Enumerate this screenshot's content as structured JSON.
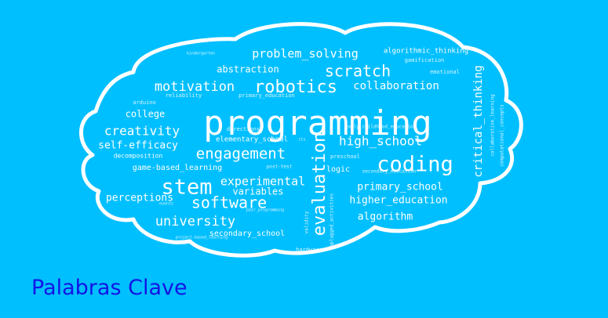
{
  "colors": {
    "background": "#00bfff",
    "cloud_outline": "#ffffff",
    "words": "#ffffff",
    "caption": "#1414e6"
  },
  "caption": "Palabras Clave",
  "words": [
    {
      "text": "programming",
      "weight": 44
    },
    {
      "text": "stem",
      "weight": 27
    },
    {
      "text": "coding",
      "weight": 27
    },
    {
      "text": "evaluation",
      "weight": 22
    },
    {
      "text": "robotics",
      "weight": 22
    },
    {
      "text": "scratch",
      "weight": 20
    },
    {
      "text": "software",
      "weight": 20
    },
    {
      "text": "engagement",
      "weight": 19
    },
    {
      "text": "motivation",
      "weight": 17
    },
    {
      "text": "university",
      "weight": 17
    },
    {
      "text": "creativity",
      "weight": 16
    },
    {
      "text": "high_school",
      "weight": 16
    },
    {
      "text": "problem_solving",
      "weight": 15
    },
    {
      "text": "experimental",
      "weight": 15
    },
    {
      "text": "collaboration",
      "weight": 14
    },
    {
      "text": "critical_thinking",
      "weight": 14
    },
    {
      "text": "self-efficacy",
      "weight": 13
    },
    {
      "text": "perceptions",
      "weight": 13
    },
    {
      "text": "primary_school",
      "weight": 13
    },
    {
      "text": "higher_education",
      "weight": 13
    },
    {
      "text": "algorithm",
      "weight": 13
    },
    {
      "text": "abstraction",
      "weight": 12
    },
    {
      "text": "college",
      "weight": 12
    },
    {
      "text": "variables",
      "weight": 12
    },
    {
      "text": "game-based_learning",
      "weight": 10
    },
    {
      "text": "secondary_school",
      "weight": 10
    },
    {
      "text": "logic",
      "weight": 10
    },
    {
      "text": "elementary_school",
      "weight": 9
    },
    {
      "text": "algorithmic_thinking",
      "weight": 9
    },
    {
      "text": "decomposition",
      "weight": 8
    },
    {
      "text": "directions",
      "weight": 7
    },
    {
      "text": "primary_education",
      "weight": 7
    },
    {
      "text": "reliability",
      "weight": 7
    },
    {
      "text": "arduino",
      "weight": 7
    },
    {
      "text": "gamification",
      "weight": 7
    },
    {
      "text": "emotional",
      "weight": 7
    },
    {
      "text": "preschool",
      "weight": 7
    },
    {
      "text": "hardware",
      "weight": 7
    },
    {
      "text": "post-test",
      "weight": 6
    },
    {
      "text": "secondary_education",
      "weight": 6
    },
    {
      "text": "early_childhood_education",
      "weight": 6
    },
    {
      "text": "collaborative_learning",
      "weight": 6
    },
    {
      "text": "computational_concepts",
      "weight": 6
    },
    {
      "text": "unplugged_activities",
      "weight": 6
    },
    {
      "text": "validity",
      "weight": 6
    },
    {
      "text": "pair_programming",
      "weight": 5
    },
    {
      "text": "project-based_learning",
      "weight": 5
    },
    {
      "text": "kindergarten",
      "weight": 5
    },
    {
      "text": "events",
      "weight": 5
    },
    {
      "text": "cts",
      "weight": 5
    }
  ]
}
